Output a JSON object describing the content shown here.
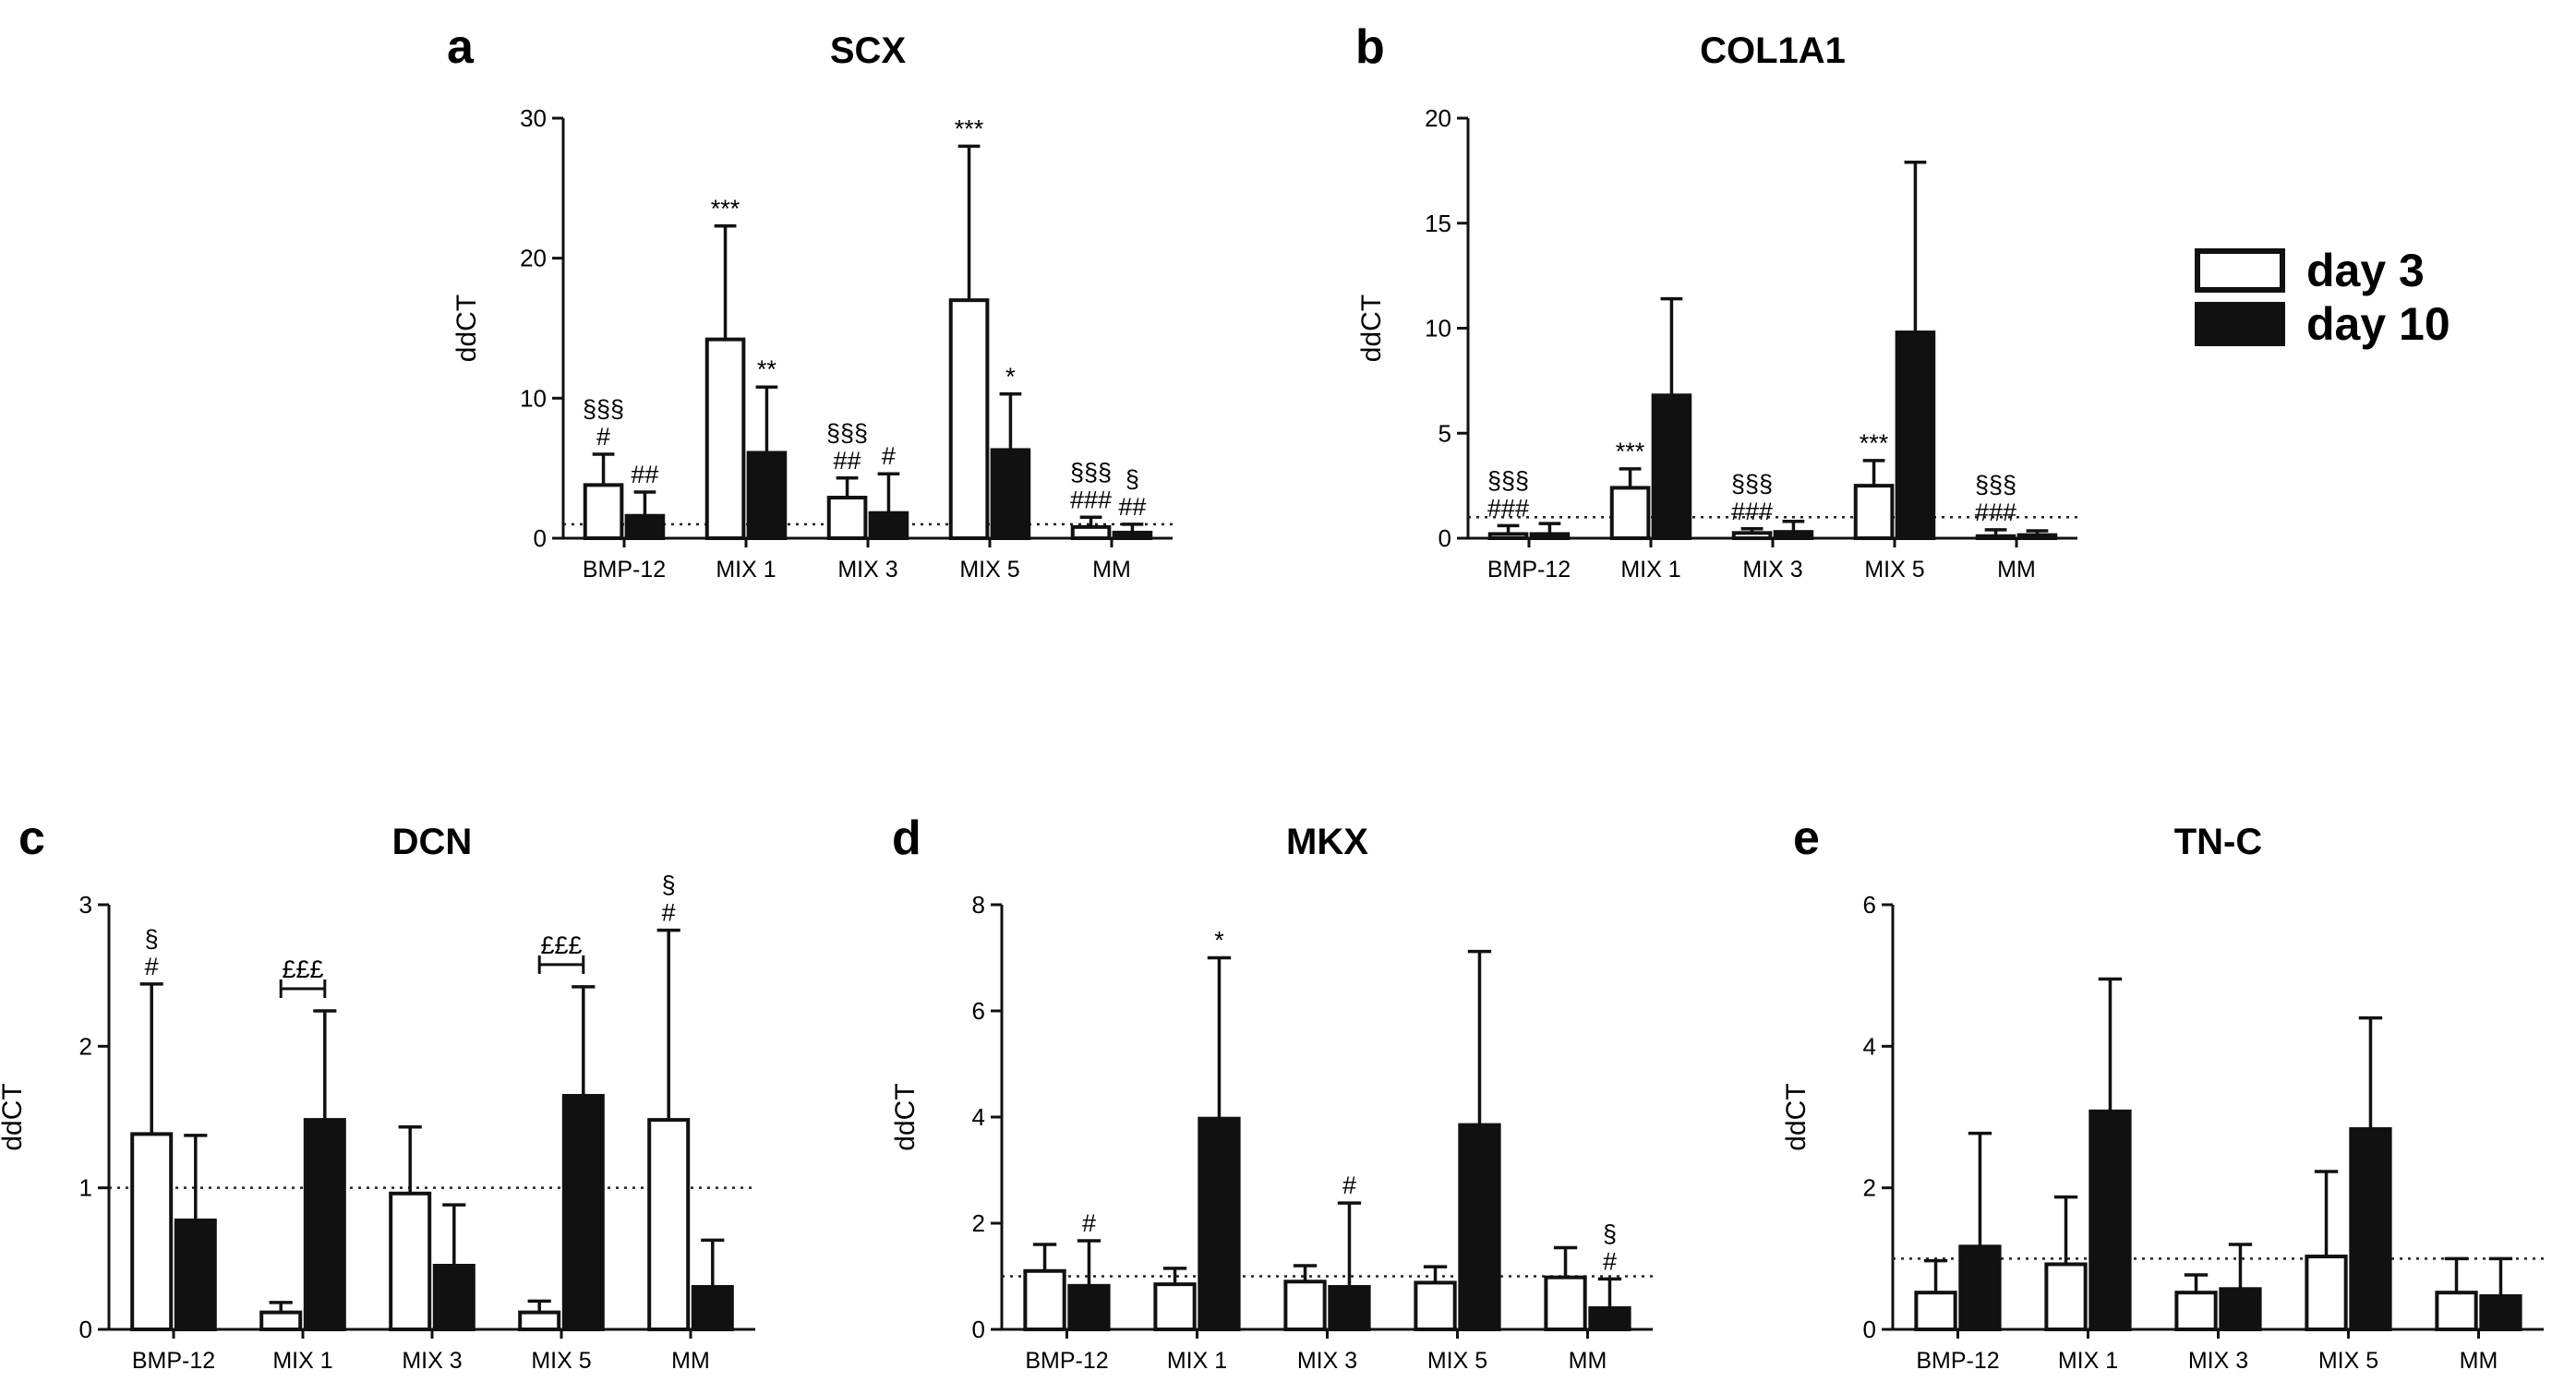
{
  "legend": {
    "items": [
      {
        "label": "day 3",
        "fill": "#ffffff"
      },
      {
        "label": "day 10",
        "fill": "#111111"
      }
    ]
  },
  "chart_data": [
    {
      "letter": "a",
      "type": "bar",
      "title": "SCX",
      "ylabel": "ddCT",
      "categories": [
        "BMP-12",
        "MIX 1",
        "MIX 3",
        "MIX 5",
        "MM"
      ],
      "ylim": [
        0,
        30
      ],
      "yticks": [
        0,
        10,
        20,
        30
      ],
      "reference_line": 1,
      "series": [
        {
          "name": "day 3",
          "values": [
            3.8,
            14.2,
            2.9,
            17.0,
            0.8
          ],
          "errors": [
            2.2,
            8.1,
            1.4,
            11.0,
            0.7
          ]
        },
        {
          "name": "day 10",
          "values": [
            1.6,
            6.1,
            1.8,
            6.3,
            0.4
          ],
          "errors": [
            1.7,
            4.7,
            2.8,
            4.0,
            0.6
          ]
        }
      ],
      "annotations": [
        {
          "cat": 0,
          "series": 0,
          "lines": [
            "§§§",
            "#"
          ]
        },
        {
          "cat": 0,
          "series": 1,
          "lines": [
            "##"
          ]
        },
        {
          "cat": 1,
          "series": 0,
          "lines": [
            "***"
          ]
        },
        {
          "cat": 1,
          "series": 1,
          "lines": [
            "**"
          ]
        },
        {
          "cat": 2,
          "series": 0,
          "lines": [
            "§§§",
            "##"
          ]
        },
        {
          "cat": 2,
          "series": 1,
          "lines": [
            "#"
          ]
        },
        {
          "cat": 3,
          "series": 0,
          "lines": [
            "***"
          ]
        },
        {
          "cat": 3,
          "series": 1,
          "lines": [
            "*"
          ]
        },
        {
          "cat": 4,
          "series": 0,
          "lines": [
            "§§§",
            "###"
          ]
        },
        {
          "cat": 4,
          "series": 1,
          "lines": [
            "§",
            "##"
          ]
        }
      ],
      "brackets": []
    },
    {
      "letter": "b",
      "type": "bar",
      "title": "COL1A1",
      "ylabel": "ddCT",
      "categories": [
        "BMP-12",
        "MIX 1",
        "MIX 3",
        "MIX 5",
        "MM"
      ],
      "ylim": [
        0,
        20
      ],
      "yticks": [
        0,
        5,
        10,
        15,
        20
      ],
      "reference_line": 1,
      "series": [
        {
          "name": "day 3",
          "values": [
            0.2,
            2.4,
            0.25,
            2.5,
            0.1
          ],
          "errors": [
            0.4,
            0.9,
            0.2,
            1.2,
            0.3
          ]
        },
        {
          "name": "day 10",
          "values": [
            0.2,
            6.8,
            0.3,
            9.8,
            0.15
          ],
          "errors": [
            0.5,
            4.6,
            0.5,
            8.1,
            0.2
          ]
        }
      ],
      "annotations": [
        {
          "cat": 0,
          "series": 0,
          "lines": [
            "§§§",
            "###"
          ]
        },
        {
          "cat": 1,
          "series": 0,
          "lines": [
            "***"
          ]
        },
        {
          "cat": 2,
          "series": 0,
          "lines": [
            "§§§",
            "###"
          ]
        },
        {
          "cat": 3,
          "series": 0,
          "lines": [
            "***"
          ]
        },
        {
          "cat": 4,
          "series": 0,
          "lines": [
            "§§§",
            "###"
          ]
        }
      ],
      "brackets": []
    },
    {
      "letter": "c",
      "type": "bar",
      "title": "DCN",
      "ylabel": "ddCT",
      "categories": [
        "BMP-12",
        "MIX 1",
        "MIX 3",
        "MIX 5",
        "MM"
      ],
      "ylim": [
        0,
        3
      ],
      "yticks": [
        0,
        1,
        2,
        3
      ],
      "reference_line": 1,
      "series": [
        {
          "name": "day 3",
          "values": [
            1.38,
            0.12,
            0.96,
            0.12,
            1.48
          ],
          "errors": [
            1.06,
            0.07,
            0.47,
            0.08,
            1.34
          ]
        },
        {
          "name": "day 10",
          "values": [
            0.77,
            1.48,
            0.45,
            1.65,
            0.3
          ],
          "errors": [
            0.6,
            0.77,
            0.43,
            0.77,
            0.33
          ]
        }
      ],
      "annotations": [
        {
          "cat": 0,
          "series": 0,
          "lines": [
            "§",
            "#"
          ]
        },
        {
          "cat": 4,
          "series": 0,
          "lines": [
            "§",
            "#"
          ]
        }
      ],
      "brackets": [
        {
          "cat": 1,
          "label": "£££"
        },
        {
          "cat": 3,
          "label": "£££"
        }
      ]
    },
    {
      "letter": "d",
      "type": "bar",
      "title": "MKX",
      "ylabel": "ddCT",
      "categories": [
        "BMP-12",
        "MIX 1",
        "MIX 3",
        "MIX 5",
        "MM"
      ],
      "ylim": [
        0,
        8
      ],
      "yticks": [
        0,
        2,
        4,
        6,
        8
      ],
      "reference_line": 1,
      "series": [
        {
          "name": "day 3",
          "values": [
            1.1,
            0.85,
            0.9,
            0.88,
            0.98
          ],
          "errors": [
            0.5,
            0.3,
            0.3,
            0.3,
            0.56
          ]
        },
        {
          "name": "day 10",
          "values": [
            0.82,
            3.97,
            0.8,
            3.85,
            0.4
          ],
          "errors": [
            0.85,
            3.03,
            1.58,
            3.27,
            0.55
          ]
        }
      ],
      "annotations": [
        {
          "cat": 0,
          "series": 1,
          "lines": [
            "#"
          ]
        },
        {
          "cat": 1,
          "series": 1,
          "lines": [
            "*"
          ]
        },
        {
          "cat": 2,
          "series": 1,
          "lines": [
            "#"
          ]
        },
        {
          "cat": 4,
          "series": 1,
          "lines": [
            "§",
            "#"
          ]
        }
      ],
      "brackets": []
    },
    {
      "letter": "e",
      "type": "bar",
      "title": "TN-C",
      "ylabel": "ddCT",
      "categories": [
        "BMP-12",
        "MIX 1",
        "MIX 3",
        "MIX 5",
        "MM"
      ],
      "ylim": [
        0,
        6
      ],
      "yticks": [
        0,
        2,
        4,
        6
      ],
      "reference_line": 1,
      "series": [
        {
          "name": "day 3",
          "values": [
            0.52,
            0.92,
            0.52,
            1.03,
            0.52
          ],
          "errors": [
            0.45,
            0.95,
            0.25,
            1.2,
            0.48
          ]
        },
        {
          "name": "day 10",
          "values": [
            1.17,
            3.08,
            0.57,
            2.83,
            0.47
          ],
          "errors": [
            1.6,
            1.87,
            0.63,
            1.57,
            0.53
          ]
        }
      ],
      "annotations": [],
      "brackets": []
    }
  ]
}
